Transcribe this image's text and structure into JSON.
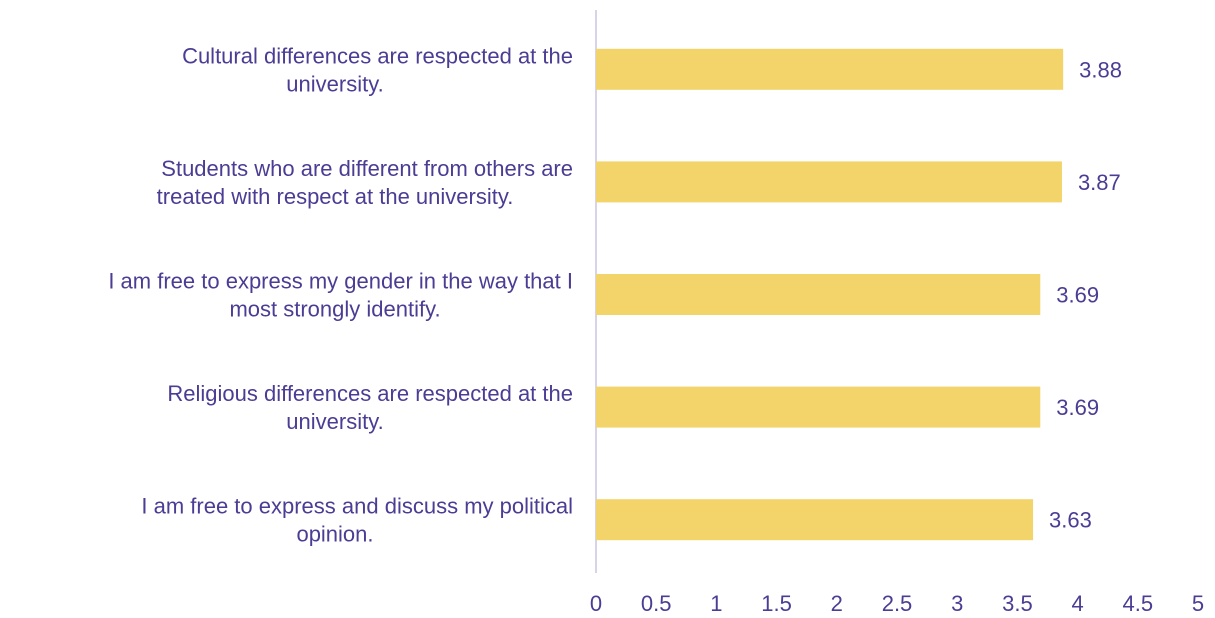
{
  "chart_data": {
    "type": "bar",
    "orientation": "horizontal",
    "categories": [
      "Cultural differences are respected at the university.",
      "Students who are different from others are treated with respect at the university.",
      "I am free to express my gender in the way that I most strongly identify.",
      "Religious differences are respected at the university.",
      "I am free to express and discuss my political opinion."
    ],
    "category_lines": [
      [
        "Cultural differences are respected at the",
        "university."
      ],
      [
        "Students who are different from others are",
        "treated with respect at the university."
      ],
      [
        "I am free to express my gender in the way that I",
        "most strongly identify."
      ],
      [
        "Religious differences are respected at the",
        "university."
      ],
      [
        "I am free to express and discuss my political",
        "opinion."
      ]
    ],
    "values": [
      3.88,
      3.87,
      3.69,
      3.69,
      3.63
    ],
    "data_labels": [
      "3.88",
      "3.87",
      "3.69",
      "3.69",
      "3.63"
    ],
    "xlim": [
      0,
      5
    ],
    "x_ticks": [
      "0",
      "0.5",
      "1",
      "1.5",
      "2",
      "2.5",
      "3",
      "3.5",
      "4",
      "4.5",
      "5"
    ],
    "grid": false,
    "legend": "none",
    "colors": {
      "bar": "#F2D46B",
      "text": "#4B3C94",
      "axis": "#C9C5DD"
    }
  }
}
